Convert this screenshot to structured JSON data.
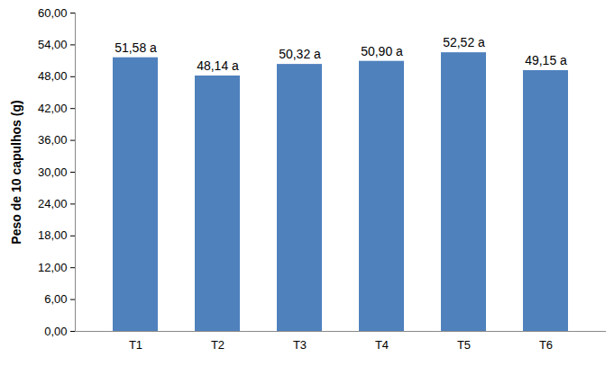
{
  "chart_data": {
    "type": "bar",
    "y_label": "Peso de 10 capulhos (g)",
    "categories": [
      "T1",
      "T2",
      "T3",
      "T4",
      "T5",
      "T6"
    ],
    "values": [
      51.58,
      48.14,
      50.32,
      50.9,
      52.52,
      49.15
    ],
    "value_labels": [
      "51,58 a",
      "48,14 a",
      "50,32 a",
      "50,90 a",
      "52,52 a",
      "49,15 a"
    ],
    "data_labels": true,
    "color": "#4f81bd",
    "ylim": [
      0,
      60
    ],
    "yticks": [
      {
        "value": 0,
        "label": "0,00"
      },
      {
        "value": 6,
        "label": "6,00"
      },
      {
        "value": 12,
        "label": "12,00"
      },
      {
        "value": 18,
        "label": "18,00"
      },
      {
        "value": 24,
        "label": "24,00"
      },
      {
        "value": 30,
        "label": "30,00"
      },
      {
        "value": 36,
        "label": "36,00"
      },
      {
        "value": 42,
        "label": "42,00"
      },
      {
        "value": 48,
        "label": "48,00"
      },
      {
        "value": 54,
        "label": "54,00"
      },
      {
        "value": 60,
        "label": "60,00"
      }
    ],
    "grid": false
  }
}
